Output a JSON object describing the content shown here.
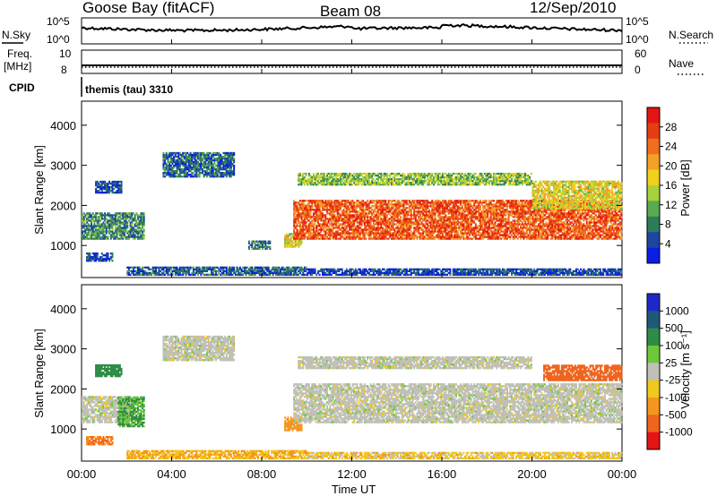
{
  "header": {
    "station": "Goose Bay (fitACF)",
    "beam": "Beam 08",
    "date": "12/Sep/2010"
  },
  "top_panels": {
    "nsky_label": "N.Sky",
    "nsky_ticks": [
      "10^5",
      "10^0"
    ],
    "nsearch_label": "N.Search",
    "nsearch_ticks": [
      "10^5",
      "10^0"
    ],
    "freq_label_line1": "Freq.",
    "freq_label_line2": "[MHz]",
    "freq_ticks": [
      "10",
      "8"
    ],
    "nave_label": "Nave",
    "nave_ticks": [
      "60",
      "0"
    ],
    "cpid_label": "CPID",
    "cpid_value": "themis (tau) 3310"
  },
  "axes": {
    "x_ticks": [
      "00:00",
      "04:00",
      "08:00",
      "12:00",
      "16:00",
      "20:00",
      "00:00"
    ],
    "xlabel": "Time UT",
    "ylabel": "Slant Range [km]",
    "y_ticks": [
      "1000",
      "2000",
      "3000",
      "4000"
    ]
  },
  "colorbars": {
    "power": {
      "label": "Power [dB]",
      "ticks": [
        "4",
        "8",
        "12",
        "16",
        "20",
        "24",
        "28"
      ],
      "colors": [
        "#0a1ee6",
        "#1e46a0",
        "#2e7d5a",
        "#5aaa50",
        "#a8d23c",
        "#f0d21e",
        "#f5a028",
        "#f06e1e",
        "#e63c14",
        "#e61414"
      ]
    },
    "velocity": {
      "label": "Velocity [m s⁻¹]",
      "ticks": [
        "1000",
        "500",
        "100",
        "25",
        "-25",
        "-100",
        "-500",
        "-1000"
      ],
      "colors": [
        "#1e28c8",
        "#1e5a78",
        "#2e8c46",
        "#6ec83c",
        "#c0c0b8",
        "#f0c81e",
        "#f5961e",
        "#f0641e",
        "#e61414"
      ]
    }
  },
  "chart_data": [
    {
      "type": "heatmap",
      "title": "Power [dB]",
      "xlabel": "Time UT",
      "ylabel": "Slant Range [km]",
      "xlim": [
        0,
        24
      ],
      "ylim": [
        200,
        4600
      ],
      "regions": [
        {
          "t": [
            0.0,
            2.8
          ],
          "r": [
            1150,
            1800
          ],
          "v": 10
        },
        {
          "t": [
            0.2,
            1.4
          ],
          "r": [
            600,
            800
          ],
          "v": 6
        },
        {
          "t": [
            0.6,
            1.8
          ],
          "r": [
            2300,
            2600
          ],
          "v": 6
        },
        {
          "t": [
            3.6,
            6.8
          ],
          "r": [
            2700,
            3300
          ],
          "v": 8
        },
        {
          "t": [
            7.4,
            8.4
          ],
          "r": [
            900,
            1100
          ],
          "v": 10
        },
        {
          "t": [
            9.0,
            9.8
          ],
          "r": [
            950,
            1300
          ],
          "v": 18
        },
        {
          "t": [
            9.4,
            24.0
          ],
          "r": [
            1150,
            2100
          ],
          "v": 26
        },
        {
          "t": [
            9.6,
            20.0
          ],
          "r": [
            2500,
            2800
          ],
          "v": 14
        },
        {
          "t": [
            20.0,
            24.0
          ],
          "r": [
            1900,
            2600
          ],
          "v": 18
        },
        {
          "t": [
            2.0,
            10.0
          ],
          "r": [
            250,
            450
          ],
          "v": 8
        },
        {
          "t": [
            10.0,
            24.0
          ],
          "r": [
            250,
            400
          ],
          "v": 6
        }
      ]
    },
    {
      "type": "heatmap",
      "title": "Velocity [m s⁻¹]",
      "xlabel": "Time UT",
      "ylabel": "Slant Range [km]",
      "xlim": [
        0,
        24
      ],
      "ylim": [
        200,
        4600
      ],
      "regions": [
        {
          "t": [
            0.0,
            2.2
          ],
          "r": [
            1150,
            1800
          ],
          "v": 0
        },
        {
          "t": [
            1.6,
            2.8
          ],
          "r": [
            1050,
            1800
          ],
          "v": 60
        },
        {
          "t": [
            0.2,
            1.4
          ],
          "r": [
            600,
            800
          ],
          "v": -200
        },
        {
          "t": [
            0.6,
            1.8
          ],
          "r": [
            2300,
            2600
          ],
          "v": 100
        },
        {
          "t": [
            3.6,
            6.8
          ],
          "r": [
            2700,
            3300
          ],
          "v": 0
        },
        {
          "t": [
            9.0,
            9.8
          ],
          "r": [
            950,
            1300
          ],
          "v": -150
        },
        {
          "t": [
            9.4,
            24.0
          ],
          "r": [
            1150,
            2100
          ],
          "v": 0
        },
        {
          "t": [
            9.6,
            20.0
          ],
          "r": [
            2500,
            2800
          ],
          "v": 0
        },
        {
          "t": [
            20.5,
            24.0
          ],
          "r": [
            2200,
            2600
          ],
          "v": -300
        },
        {
          "t": [
            2.0,
            10.0
          ],
          "r": [
            250,
            450
          ],
          "v": -60
        },
        {
          "t": [
            10.0,
            24.0
          ],
          "r": [
            250,
            400
          ],
          "v": -40
        }
      ]
    }
  ]
}
